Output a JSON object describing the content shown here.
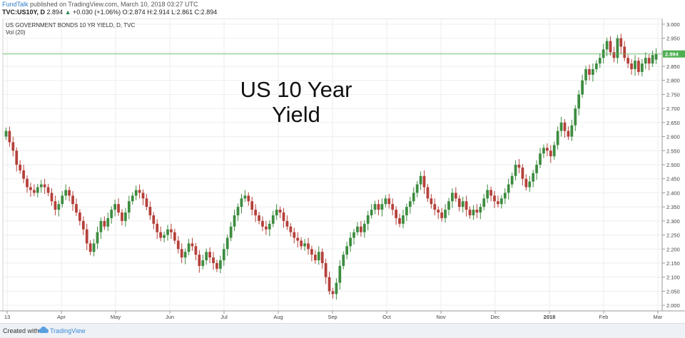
{
  "header": {
    "brand": "FundTalk",
    "published": "published on TradingView.com, March 10, 2018 03:27 UTC",
    "symbol": "TVC:US10Y, D",
    "last": "2.894",
    "change": "+0.030 (+1.06%)",
    "ohlc": "O:2.874 H:2.914 L:2.861 C:2.894"
  },
  "legend": {
    "title": "US GOVERNMENT BONDS 10 YR YIELD, D, TVC",
    "vol": "Vol (20)"
  },
  "overlay_text": [
    "US 10 Year",
    "Yield"
  ],
  "footer": {
    "created_with": "Created with",
    "brand": "TradingView"
  },
  "colors": {
    "up": "#3d8c40",
    "down": "#b5403a",
    "price_line": "#5fb35f",
    "price_label_bg": "#4caf50",
    "grid": "#eeeeee"
  },
  "chart_data": {
    "type": "candlestick",
    "title": "US GOVERNMENT BONDS 10 YR YIELD, D, TVC",
    "ylim": [
      1.98,
      3.02
    ],
    "y_ticks": [
      "3.000",
      "2.950",
      "2.900",
      "2.850",
      "2.800",
      "2.750",
      "2.700",
      "2.650",
      "2.600",
      "2.550",
      "2.500",
      "2.450",
      "2.400",
      "2.350",
      "2.300",
      "2.250",
      "2.200",
      "2.150",
      "2.100",
      "2.050",
      "2.000"
    ],
    "x_ticks": [
      "13",
      "Apr",
      "May",
      "Jun",
      "Jul",
      "Aug",
      "Sep",
      "Oct",
      "Nov",
      "Dec",
      "2018",
      "Feb",
      "Mar"
    ],
    "last_price": 2.894,
    "last_price_label": "2.894",
    "series": [
      {
        "name": "",
        "points": [
          [
            2.6,
            2.62
          ],
          [
            2.62,
            2.58
          ],
          [
            2.58,
            2.55
          ],
          [
            2.55,
            2.5
          ],
          [
            2.5,
            2.48
          ],
          [
            2.48,
            2.45
          ],
          [
            2.45,
            2.42
          ],
          [
            2.42,
            2.41
          ],
          [
            2.41,
            2.4
          ],
          [
            2.4,
            2.42
          ],
          [
            2.42,
            2.43
          ],
          [
            2.43,
            2.42
          ],
          [
            2.42,
            2.4
          ],
          [
            2.4,
            2.37
          ],
          [
            2.37,
            2.34
          ],
          [
            2.34,
            2.36
          ],
          [
            2.36,
            2.39
          ],
          [
            2.39,
            2.41
          ],
          [
            2.41,
            2.39
          ],
          [
            2.39,
            2.36
          ],
          [
            2.36,
            2.33
          ],
          [
            2.33,
            2.3
          ],
          [
            2.3,
            2.27
          ],
          [
            2.27,
            2.22
          ],
          [
            2.22,
            2.19
          ],
          [
            2.19,
            2.22
          ],
          [
            2.22,
            2.26
          ],
          [
            2.26,
            2.3
          ],
          [
            2.3,
            2.28
          ],
          [
            2.28,
            2.31
          ],
          [
            2.31,
            2.34
          ],
          [
            2.34,
            2.36
          ],
          [
            2.36,
            2.33
          ],
          [
            2.33,
            2.3
          ],
          [
            2.3,
            2.33
          ],
          [
            2.33,
            2.37
          ],
          [
            2.37,
            2.39
          ],
          [
            2.39,
            2.41
          ],
          [
            2.41,
            2.4
          ],
          [
            2.4,
            2.38
          ],
          [
            2.38,
            2.35
          ],
          [
            2.35,
            2.32
          ],
          [
            2.32,
            2.29
          ],
          [
            2.29,
            2.26
          ],
          [
            2.26,
            2.24
          ],
          [
            2.24,
            2.25
          ],
          [
            2.25,
            2.27
          ],
          [
            2.27,
            2.26
          ],
          [
            2.26,
            2.23
          ],
          [
            2.23,
            2.2
          ],
          [
            2.2,
            2.17
          ],
          [
            2.17,
            2.19
          ],
          [
            2.19,
            2.22
          ],
          [
            2.22,
            2.21
          ],
          [
            2.21,
            2.18
          ],
          [
            2.18,
            2.14
          ],
          [
            2.14,
            2.16
          ],
          [
            2.16,
            2.19
          ],
          [
            2.19,
            2.17
          ],
          [
            2.17,
            2.15
          ],
          [
            2.15,
            2.13
          ],
          [
            2.13,
            2.16
          ],
          [
            2.16,
            2.2
          ],
          [
            2.2,
            2.24
          ],
          [
            2.24,
            2.28
          ],
          [
            2.28,
            2.32
          ],
          [
            2.32,
            2.35
          ],
          [
            2.35,
            2.38
          ],
          [
            2.38,
            2.39
          ],
          [
            2.39,
            2.37
          ],
          [
            2.37,
            2.34
          ],
          [
            2.34,
            2.32
          ],
          [
            2.32,
            2.3
          ],
          [
            2.3,
            2.28
          ],
          [
            2.28,
            2.27
          ],
          [
            2.27,
            2.29
          ],
          [
            2.29,
            2.32
          ],
          [
            2.32,
            2.34
          ],
          [
            2.34,
            2.33
          ],
          [
            2.33,
            2.3
          ],
          [
            2.3,
            2.28
          ],
          [
            2.28,
            2.26
          ],
          [
            2.26,
            2.24
          ],
          [
            2.24,
            2.23
          ],
          [
            2.23,
            2.21
          ],
          [
            2.21,
            2.22
          ],
          [
            2.22,
            2.2
          ],
          [
            2.2,
            2.18
          ],
          [
            2.18,
            2.16
          ],
          [
            2.16,
            2.19
          ],
          [
            2.19,
            2.15
          ],
          [
            2.15,
            2.1
          ],
          [
            2.1,
            2.05
          ],
          [
            2.05,
            2.04
          ],
          [
            2.04,
            2.08
          ],
          [
            2.08,
            2.14
          ],
          [
            2.14,
            2.18
          ],
          [
            2.18,
            2.21
          ],
          [
            2.21,
            2.24
          ],
          [
            2.24,
            2.26
          ],
          [
            2.26,
            2.28
          ],
          [
            2.28,
            2.26
          ],
          [
            2.26,
            2.29
          ],
          [
            2.29,
            2.32
          ],
          [
            2.32,
            2.34
          ],
          [
            2.34,
            2.36
          ],
          [
            2.36,
            2.34
          ],
          [
            2.34,
            2.36
          ],
          [
            2.36,
            2.38
          ],
          [
            2.38,
            2.36
          ],
          [
            2.36,
            2.34
          ],
          [
            2.34,
            2.31
          ],
          [
            2.31,
            2.29
          ],
          [
            2.29,
            2.32
          ],
          [
            2.32,
            2.35
          ],
          [
            2.35,
            2.37
          ],
          [
            2.37,
            2.4
          ],
          [
            2.4,
            2.43
          ],
          [
            2.43,
            2.46
          ],
          [
            2.46,
            2.42
          ],
          [
            2.42,
            2.38
          ],
          [
            2.38,
            2.36
          ],
          [
            2.36,
            2.34
          ],
          [
            2.34,
            2.33
          ],
          [
            2.33,
            2.31
          ],
          [
            2.31,
            2.34
          ],
          [
            2.34,
            2.37
          ],
          [
            2.37,
            2.4
          ],
          [
            2.4,
            2.38
          ],
          [
            2.38,
            2.35
          ],
          [
            2.35,
            2.37
          ],
          [
            2.37,
            2.34
          ],
          [
            2.34,
            2.32
          ],
          [
            2.32,
            2.34
          ],
          [
            2.34,
            2.33
          ],
          [
            2.33,
            2.35
          ],
          [
            2.35,
            2.38
          ],
          [
            2.38,
            2.41
          ],
          [
            2.41,
            2.39
          ],
          [
            2.39,
            2.37
          ],
          [
            2.37,
            2.36
          ],
          [
            2.36,
            2.38
          ],
          [
            2.38,
            2.4
          ],
          [
            2.4,
            2.43
          ],
          [
            2.43,
            2.46
          ],
          [
            2.46,
            2.5
          ],
          [
            2.5,
            2.49
          ],
          [
            2.49,
            2.45
          ],
          [
            2.45,
            2.42
          ],
          [
            2.42,
            2.44
          ],
          [
            2.44,
            2.47
          ],
          [
            2.47,
            2.5
          ],
          [
            2.5,
            2.54
          ],
          [
            2.54,
            2.56
          ],
          [
            2.56,
            2.55
          ],
          [
            2.55,
            2.53
          ],
          [
            2.53,
            2.57
          ],
          [
            2.57,
            2.62
          ],
          [
            2.62,
            2.65
          ],
          [
            2.65,
            2.62
          ],
          [
            2.62,
            2.6
          ],
          [
            2.6,
            2.64
          ],
          [
            2.64,
            2.7
          ],
          [
            2.7,
            2.75
          ],
          [
            2.75,
            2.8
          ],
          [
            2.8,
            2.84
          ],
          [
            2.84,
            2.82
          ],
          [
            2.82,
            2.84
          ],
          [
            2.84,
            2.86
          ],
          [
            2.86,
            2.88
          ],
          [
            2.88,
            2.91
          ],
          [
            2.91,
            2.94
          ],
          [
            2.94,
            2.9
          ],
          [
            2.9,
            2.88
          ],
          [
            2.88,
            2.95
          ],
          [
            2.95,
            2.92
          ],
          [
            2.92,
            2.88
          ],
          [
            2.88,
            2.86
          ],
          [
            2.86,
            2.84
          ],
          [
            2.84,
            2.87
          ],
          [
            2.87,
            2.83
          ],
          [
            2.83,
            2.86
          ],
          [
            2.86,
            2.88
          ],
          [
            2.88,
            2.86
          ],
          [
            2.86,
            2.89
          ],
          [
            2.874,
            2.894
          ]
        ]
      }
    ]
  }
}
